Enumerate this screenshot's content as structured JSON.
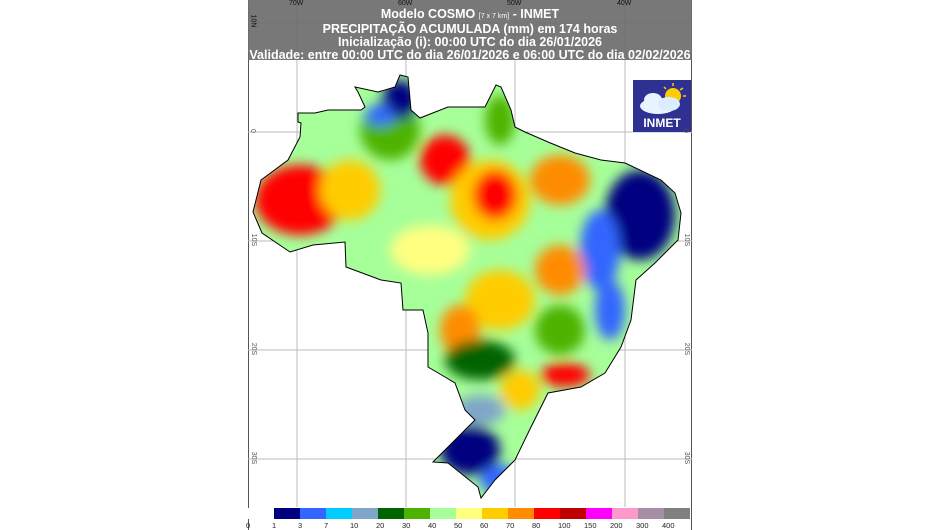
{
  "header": {
    "line1_prefix": "Modelo COSMO",
    "line1_res": "[7 x 7 km]",
    "line1_suffix": "- INMET",
    "line2": "PRECIPITAÇÃO ACUMULADA (mm) em 174 horas",
    "line3": "Inicialização (i): 00:00 UTC do dia 26/01/2026",
    "line4": "Validade: entre 00:00 UTC do dia 26/01/2026 e 06:00 UTC do dia 02/02/2026"
  },
  "logo": {
    "text": "INMET",
    "color": "#2e3192"
  },
  "axes": {
    "longitudes": [
      "70W",
      "60W",
      "50W",
      "40W"
    ],
    "latitudes": [
      "10N",
      "0",
      "10S",
      "20S",
      "30S"
    ]
  },
  "legend": {
    "labels": [
      "0",
      "1",
      "3",
      "7",
      "10",
      "20",
      "30",
      "40",
      "50",
      "60",
      "70",
      "80",
      "100",
      "150",
      "200",
      "300",
      "400"
    ],
    "colors": [
      "#ffffff",
      "#000080",
      "#3366ff",
      "#00ccff",
      "#7fa6c9",
      "#006400",
      "#4db300",
      "#a6ff99",
      "#ffff80",
      "#ffcc00",
      "#ff8c00",
      "#ff0000",
      "#c00000",
      "#ff00ff",
      "#ff99cc",
      "#a68fa6",
      "#808080"
    ]
  }
}
